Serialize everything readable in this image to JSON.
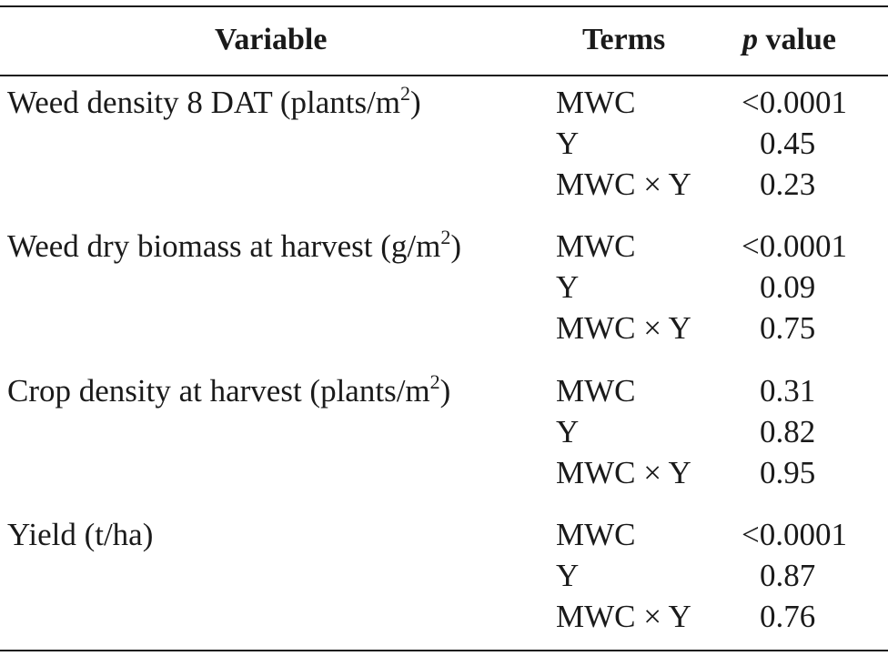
{
  "header": {
    "variable": "Variable",
    "terms": "Terms",
    "p_italic": "p",
    "p_rest": " value"
  },
  "groups": [
    {
      "label": "Weed density 8 DAT (plants/m",
      "sup": "2",
      "label_end": ")",
      "rows": [
        {
          "term": "MWC",
          "p": "<0.0001"
        },
        {
          "term": "Y",
          "p": "0.45"
        },
        {
          "term": "MWC × Y",
          "p": "0.23"
        }
      ]
    },
    {
      "label": "Weed dry biomass at harvest (g/m",
      "sup": "2",
      "label_end": ")",
      "rows": [
        {
          "term": "MWC",
          "p": "<0.0001"
        },
        {
          "term": "Y",
          "p": "0.09"
        },
        {
          "term": "MWC × Y",
          "p": "0.75"
        }
      ]
    },
    {
      "label": "Crop density at harvest (plants/m",
      "sup": "2",
      "label_end": ")",
      "rows": [
        {
          "term": "MWC",
          "p": "0.31"
        },
        {
          "term": "Y",
          "p": "0.82"
        },
        {
          "term": "MWC × Y",
          "p": "0.95"
        }
      ]
    },
    {
      "label": "Yield (t/ha)",
      "sup": "",
      "label_end": "",
      "rows": [
        {
          "term": "MWC",
          "p": "<0.0001"
        },
        {
          "term": "Y",
          "p": "0.87"
        },
        {
          "term": "MWC × Y",
          "p": "0.76"
        }
      ]
    }
  ]
}
